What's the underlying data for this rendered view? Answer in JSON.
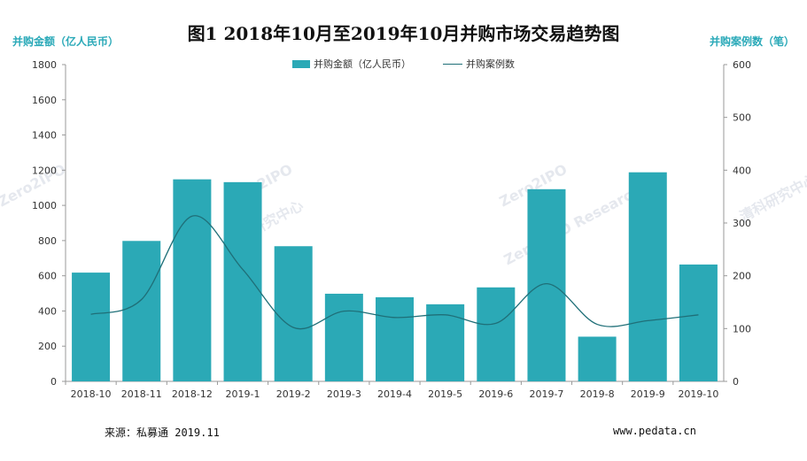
{
  "chart_data": {
    "type": "bar",
    "title": "图1 2018年10月至2019年10月并购市场交易趋势图",
    "categories": [
      "2018-10",
      "2018-11",
      "2018-12",
      "2019-1",
      "2019-2",
      "2019-3",
      "2019-4",
      "2019-5",
      "2019-6",
      "2019-7",
      "2019-8",
      "2019-9",
      "2019-10"
    ],
    "series": [
      {
        "name": "并购金额（亿人民币）",
        "type": "bar",
        "axis": "left",
        "color": "#2ba9b6",
        "values": [
          618,
          798,
          1148,
          1132,
          768,
          498,
          478,
          438,
          534,
          1092,
          254,
          1188,
          664
        ]
      },
      {
        "name": "并购案例数",
        "type": "line",
        "axis": "right",
        "color": "#1f6f78",
        "values": [
          127,
          155,
          313,
          212,
          102,
          133,
          121,
          126,
          110,
          185,
          108,
          115,
          126
        ]
      }
    ],
    "ylabel_left": "并购金额（亿人民币）",
    "ylabel_right": "并购案例数（笔）",
    "ylim_left": [
      0,
      1800
    ],
    "ylim_right": [
      0,
      600
    ],
    "yticks_left": [
      0,
      200,
      400,
      600,
      800,
      1000,
      1200,
      1400,
      1600,
      1800
    ],
    "yticks_right": [
      0,
      100,
      200,
      300,
      400,
      500,
      600
    ],
    "legend_position": "top-center"
  },
  "labels": {
    "unit_left": "并购金额（亿人民币）",
    "unit_right": "并购案例数（笔）",
    "legend_bar": "并购金额（亿人民币）",
    "legend_line": "并购案例数",
    "source": "来源：私募通 2019.11",
    "website": "www.pedata.cn"
  },
  "watermarks": [
    "Zero2IPO",
    "清科研究中心",
    "Zero2IPO Research"
  ]
}
